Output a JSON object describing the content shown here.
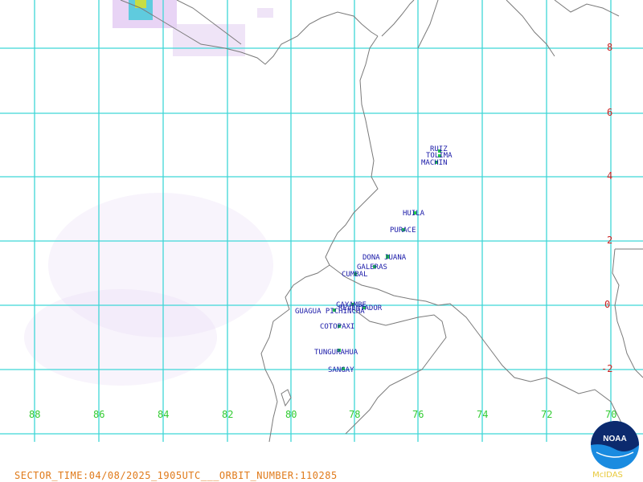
{
  "map": {
    "lon_ticks": [
      "88",
      "86",
      "84",
      "82",
      "80",
      "78",
      "76",
      "74",
      "72",
      "70"
    ],
    "lat_ticks": [
      "8",
      "6",
      "4",
      "2",
      "0",
      "-2"
    ],
    "volcanoes": [
      {
        "name": "RUIZ"
      },
      {
        "name": "TOLIMA"
      },
      {
        "name": "MACHIN"
      },
      {
        "name": "HUILA"
      },
      {
        "name": "PURACE"
      },
      {
        "name": "DONA JUANA"
      },
      {
        "name": "GALERAS"
      },
      {
        "name": "CUMBAL"
      },
      {
        "name": "CAYAMBE"
      },
      {
        "name": "REVENTADOR"
      },
      {
        "name": "GUAGUA PICHINCHA"
      },
      {
        "name": "COTOPAXI"
      },
      {
        "name": "TUNGURAHUA"
      },
      {
        "name": "SANGAY"
      }
    ],
    "colors": {
      "grid": "#3fd7d7",
      "coast": "#7a7a7a",
      "lon_tick": "#33cc33",
      "lat_tick": "#cc2222",
      "volcano_label": "#1a1aa8",
      "volcano_mark": "#22c84a"
    }
  },
  "footer": {
    "sector_text": "SECTOR_TIME:04/08/2025_1905UTC___ORBIT_NUMBER:110285"
  },
  "logo": {
    "text": "NOAA",
    "icon": "noaa-logo-icon"
  },
  "brand": {
    "text": "McIDAS"
  }
}
